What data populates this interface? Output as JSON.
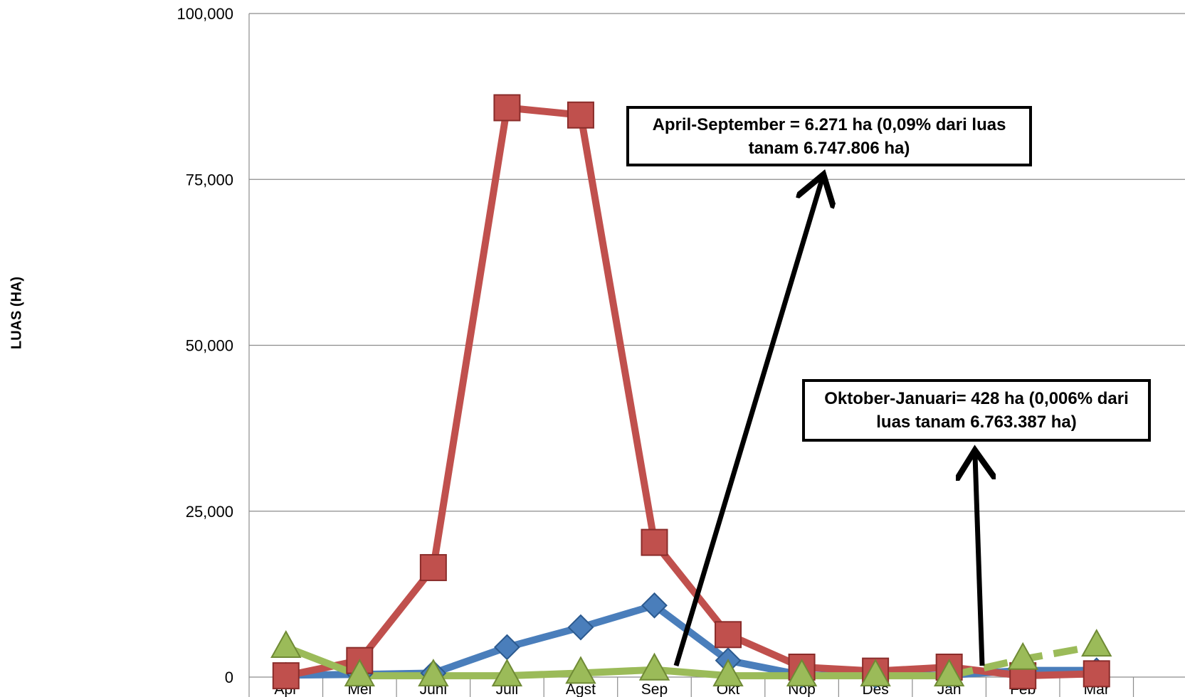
{
  "chart_data": {
    "type": "line",
    "ylabel": "LUAS (HA)",
    "ylim": [
      0,
      100000
    ],
    "yticks": [
      "0",
      "25,000",
      "50,000",
      "75,000",
      "100,000"
    ],
    "ytick_values": [
      0,
      25000,
      50000,
      75000,
      100000
    ],
    "grid": "horizontal",
    "categories": [
      "Apr",
      "Mei",
      "Juni",
      "Juli",
      "Agst",
      "Sep",
      "Okt",
      "Nop",
      "Des",
      "Jan",
      "Feb",
      "Mar"
    ],
    "series": [
      {
        "color": "#4a7ebb",
        "marker": "diamond",
        "values": [
          300,
          400,
          600,
          4500,
          7500,
          10800,
          2500,
          300,
          200,
          300,
          1000,
          1000
        ]
      },
      {
        "color": "#c0504d",
        "marker": "square",
        "values": [
          200,
          2500,
          16500,
          85800,
          84700,
          20300,
          6400,
          1500,
          900,
          1500,
          200,
          500
        ]
      },
      {
        "color": "#9bbb59",
        "marker": "triangle",
        "values": [
          4500,
          200,
          200,
          200,
          600,
          1100,
          200,
          200,
          200,
          200,
          2700,
          4700
        ],
        "dashed_from_index": 9
      }
    ],
    "annotations": [
      {
        "text": "April-September = 6.271 ha (0,09% dari luas tanam 6.747.806 ha)"
      },
      {
        "text": "Oktober-Januari= 428 ha (0,006% dari luas tanam  6.763.387 ha)"
      }
    ]
  }
}
